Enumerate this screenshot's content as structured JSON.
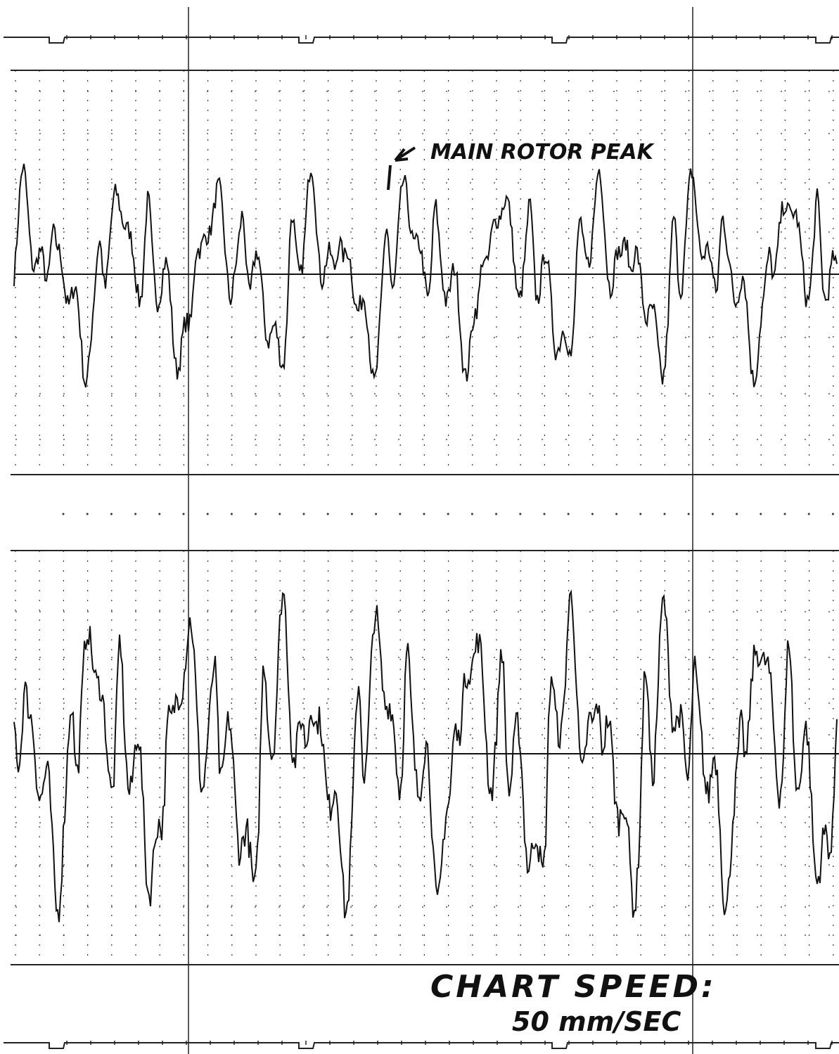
{
  "annotation": {
    "peak_label": "MAIN ROTOR PEAK"
  },
  "footer": {
    "label": "CHART SPEED:",
    "speed": "50 mm/SEC"
  }
}
